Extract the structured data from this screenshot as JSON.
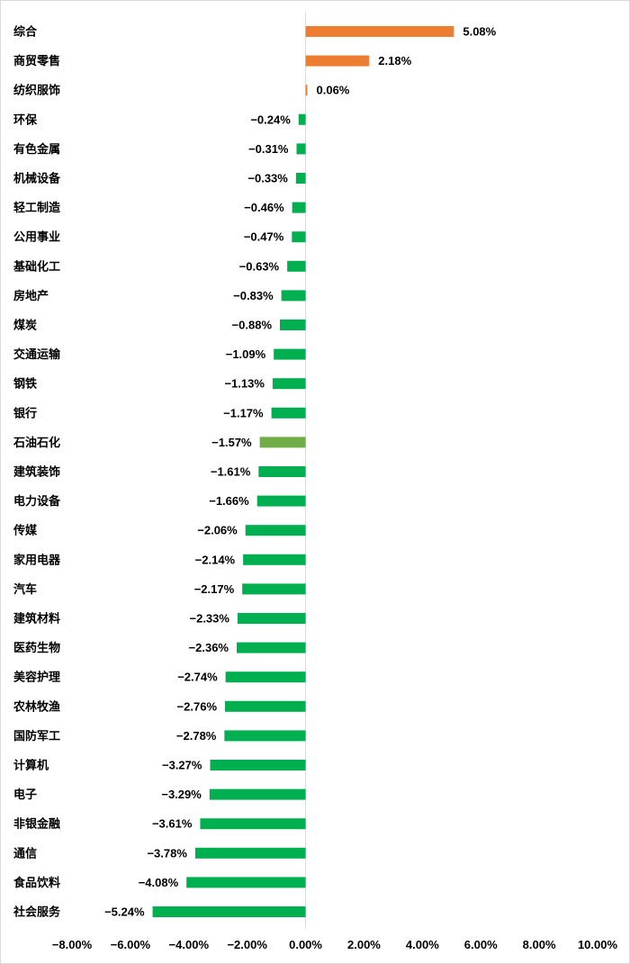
{
  "colors": {
    "positive": "#ED7D31",
    "negative": "#00B050",
    "highlight": "#70AD47",
    "axis": "#d9d9d9"
  },
  "chart_data": {
    "type": "bar",
    "orientation": "horizontal",
    "categories": [
      "综合",
      "商贸零售",
      "纺织服饰",
      "环保",
      "有色金属",
      "机械设备",
      "轻工制造",
      "公用事业",
      "基础化工",
      "房地产",
      "煤炭",
      "交通运输",
      "钢铁",
      "银行",
      "石油石化",
      "建筑装饰",
      "电力设备",
      "传媒",
      "家用电器",
      "汽车",
      "建筑材料",
      "医药生物",
      "美容护理",
      "农林牧渔",
      "国防军工",
      "计算机",
      "电子",
      "非银金融",
      "通信",
      "食品饮料",
      "社会服务"
    ],
    "values": [
      5.08,
      2.18,
      0.06,
      -0.24,
      -0.31,
      -0.33,
      -0.46,
      -0.47,
      -0.63,
      -0.83,
      -0.88,
      -1.09,
      -1.13,
      -1.17,
      -1.57,
      -1.61,
      -1.66,
      -2.06,
      -2.14,
      -2.17,
      -2.33,
      -2.36,
      -2.74,
      -2.76,
      -2.78,
      -3.27,
      -3.29,
      -3.61,
      -3.78,
      -4.08,
      -5.24
    ],
    "value_labels": [
      "5.08%",
      "2.18%",
      "0.06%",
      "−0.24%",
      "−0.31%",
      "−0.33%",
      "−0.46%",
      "−0.47%",
      "−0.63%",
      "−0.83%",
      "−0.88%",
      "−1.09%",
      "−1.13%",
      "−1.17%",
      "−1.57%",
      "−1.61%",
      "−1.66%",
      "−2.06%",
      "−2.14%",
      "−2.17%",
      "−2.33%",
      "−2.36%",
      "−2.74%",
      "−2.76%",
      "−2.78%",
      "−3.27%",
      "−3.29%",
      "−3.61%",
      "−3.78%",
      "−4.08%",
      "−5.24%"
    ],
    "highlight_category": "石油石化",
    "xlim": [
      -8,
      10
    ],
    "x_ticks": [
      -8,
      -6,
      -4,
      -2,
      0,
      2,
      4,
      6,
      8,
      10
    ],
    "x_tick_labels": [
      "−8.00%",
      "−6.00%",
      "−4.00%",
      "−2.00%",
      "0.00%",
      "2.00%",
      "4.00%",
      "6.00%",
      "8.00%",
      "10.00%"
    ],
    "grid": false,
    "legend": "none",
    "title": "",
    "xlabel": "",
    "ylabel": ""
  }
}
